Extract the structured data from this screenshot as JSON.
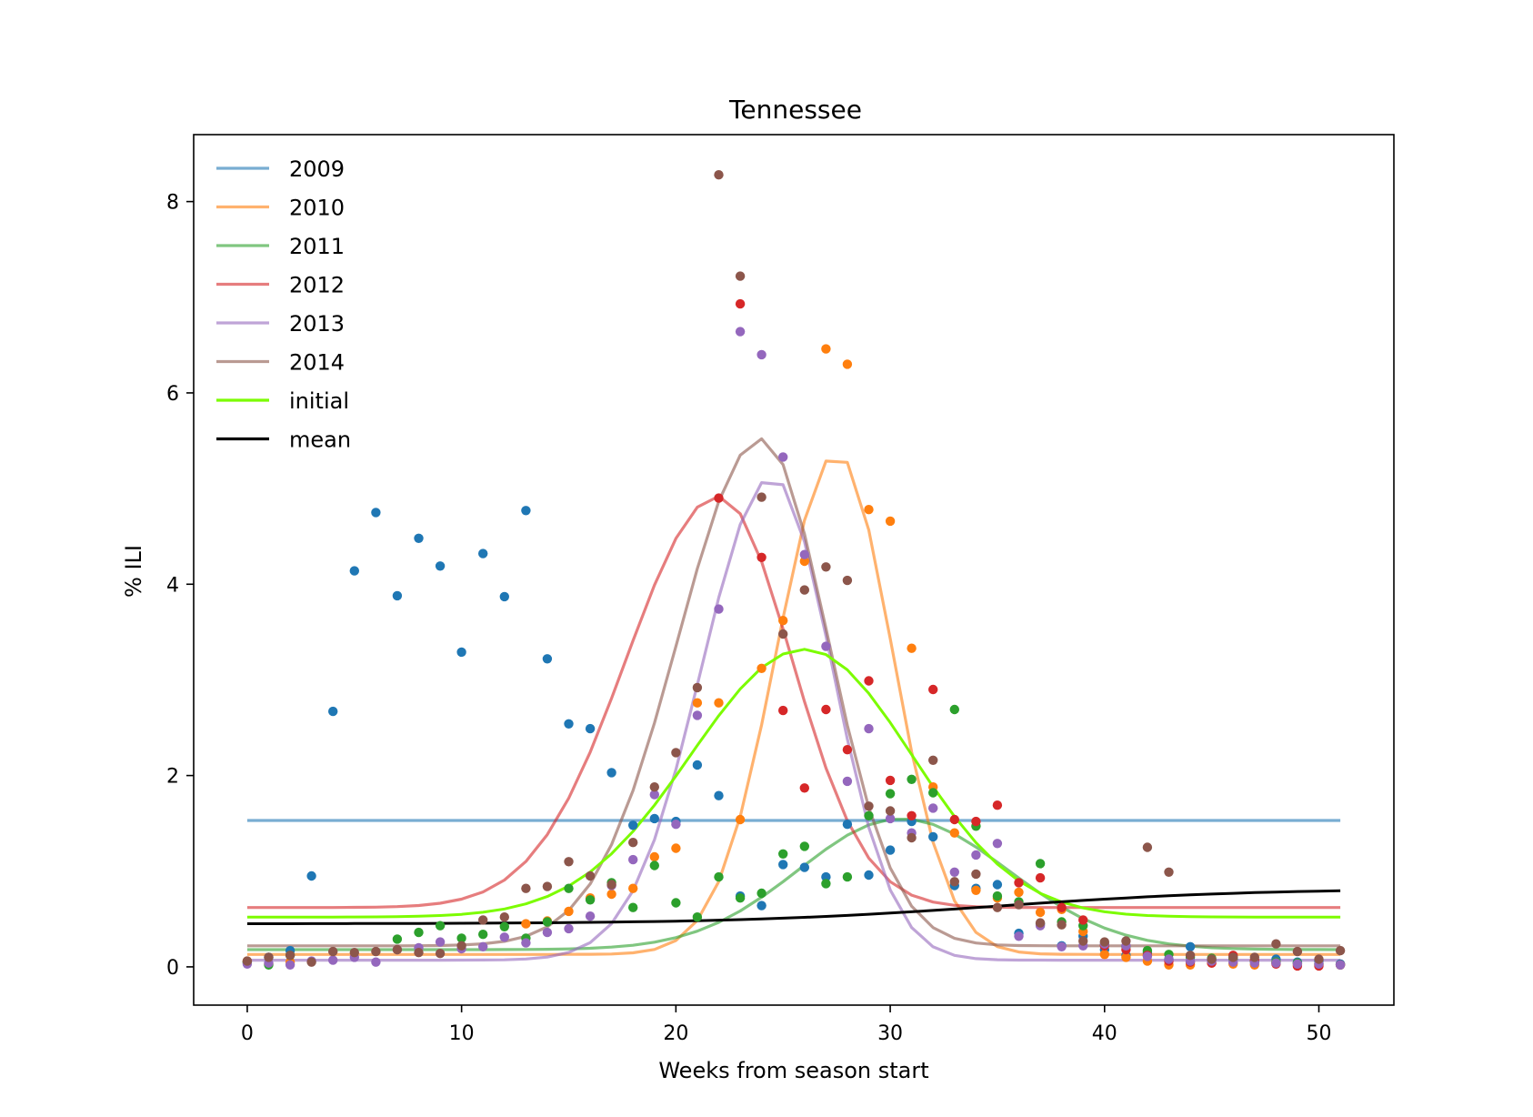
{
  "chart_data": {
    "type": "line",
    "title": "Tennessee",
    "xlabel": "Weeks from season start",
    "ylabel": "% ILI",
    "xlim": [
      -2.5,
      53.5
    ],
    "ylim": [
      -0.4,
      8.7
    ],
    "xticks": [
      0,
      10,
      20,
      30,
      40,
      50
    ],
    "yticks": [
      0,
      2,
      4,
      6,
      8
    ],
    "grid": false,
    "legend_position": "top-left",
    "legend": [
      "2009",
      "2010",
      "2011",
      "2012",
      "2013",
      "2014",
      "initial",
      "mean"
    ],
    "colors": {
      "2009": "#1f77b4",
      "2010": "#ff7f0e",
      "2011": "#2ca02c",
      "2012": "#d62728",
      "2013": "#9467bd",
      "2014": "#8c564b",
      "initial": "#7cfc00",
      "mean": "#000000"
    },
    "curves": [
      {
        "name": "2009",
        "model": "flat",
        "value": 1.53
      },
      {
        "name": "2010",
        "model": "bump",
        "base": 0.13,
        "peak": 5.37,
        "center": 27.5,
        "rise": 2.8,
        "fall": 2.6
      },
      {
        "name": "2011",
        "model": "bump",
        "base": 0.18,
        "peak": 1.55,
        "center": 30.5,
        "rise": 4.8,
        "fall": 5.0
      },
      {
        "name": "2012",
        "model": "bump",
        "base": 0.62,
        "peak": 4.92,
        "center": 22.0,
        "rise": 4.3,
        "fall": 3.4
      },
      {
        "name": "2013",
        "model": "bump",
        "base": 0.07,
        "peak": 5.12,
        "center": 24.5,
        "rise": 3.3,
        "fall": 2.8
      },
      {
        "name": "2014",
        "model": "bump",
        "base": 0.22,
        "peak": 5.52,
        "center": 24.0,
        "rise": 3.9,
        "fall": 3.1
      },
      {
        "name": "initial",
        "model": "bump",
        "base": 0.52,
        "peak": 3.32,
        "center": 26.0,
        "rise": 5.3,
        "fall": 5.0
      },
      {
        "name": "mean",
        "model": "sigmoid",
        "low": 0.45,
        "high": 0.82,
        "mid": 35.0,
        "scale": 6.0
      }
    ],
    "points": {
      "2009": [
        [
          3,
          0.95
        ],
        [
          4,
          2.67
        ],
        [
          5,
          4.14
        ],
        [
          6,
          4.75
        ],
        [
          7,
          3.88
        ],
        [
          8,
          4.48
        ],
        [
          9,
          4.19
        ],
        [
          10,
          3.29
        ],
        [
          11,
          4.32
        ],
        [
          12,
          3.87
        ],
        [
          13,
          4.77
        ],
        [
          14,
          3.22
        ],
        [
          15,
          2.54
        ],
        [
          16,
          2.49
        ],
        [
          17,
          2.03
        ],
        [
          18,
          1.48
        ],
        [
          19,
          1.55
        ],
        [
          20,
          1.52
        ],
        [
          21,
          2.11
        ],
        [
          22,
          1.79
        ],
        [
          23,
          0.74
        ],
        [
          24,
          0.64
        ],
        [
          25,
          1.07
        ],
        [
          26,
          1.04
        ],
        [
          27,
          0.94
        ],
        [
          28,
          1.49
        ],
        [
          29,
          0.96
        ],
        [
          30,
          1.22
        ],
        [
          31,
          1.52
        ],
        [
          32,
          1.36
        ],
        [
          33,
          0.85
        ],
        [
          34,
          0.82
        ],
        [
          35,
          0.86
        ],
        [
          36,
          0.35
        ],
        [
          37,
          0.45
        ],
        [
          38,
          0.22
        ],
        [
          39,
          0.32
        ],
        [
          40,
          0.18
        ],
        [
          41,
          0.12
        ],
        [
          42,
          0.15
        ],
        [
          43,
          0.08
        ],
        [
          44,
          0.21
        ],
        [
          45,
          0.07
        ],
        [
          46,
          0.1
        ],
        [
          47,
          0.06
        ],
        [
          48,
          0.08
        ],
        [
          49,
          0.05
        ],
        [
          50,
          0.06
        ],
        [
          51,
          0.03
        ],
        [
          0,
          0.05
        ],
        [
          1,
          0.1
        ],
        [
          2,
          0.17
        ]
      ],
      "2010": [
        [
          0,
          0.06
        ],
        [
          1,
          0.03
        ],
        [
          2,
          0.05
        ],
        [
          13,
          0.45
        ],
        [
          14,
          0.48
        ],
        [
          15,
          0.58
        ],
        [
          16,
          0.72
        ],
        [
          17,
          0.76
        ],
        [
          18,
          0.82
        ],
        [
          19,
          1.15
        ],
        [
          20,
          1.24
        ],
        [
          21,
          2.76
        ],
        [
          22,
          2.76
        ],
        [
          23,
          1.54
        ],
        [
          24,
          3.12
        ],
        [
          25,
          3.62
        ],
        [
          26,
          4.24
        ],
        [
          27,
          6.46
        ],
        [
          28,
          6.3
        ],
        [
          29,
          4.78
        ],
        [
          30,
          4.66
        ],
        [
          31,
          3.33
        ],
        [
          32,
          1.88
        ],
        [
          33,
          1.4
        ],
        [
          34,
          0.8
        ],
        [
          35,
          0.72
        ],
        [
          36,
          0.78
        ],
        [
          37,
          0.57
        ],
        [
          38,
          0.6
        ],
        [
          39,
          0.37
        ],
        [
          40,
          0.13
        ],
        [
          41,
          0.1
        ],
        [
          42,
          0.06
        ],
        [
          43,
          0.02
        ],
        [
          44,
          0.02
        ],
        [
          45,
          0.04
        ],
        [
          46,
          0.03
        ],
        [
          47,
          0.02
        ],
        [
          48,
          0.05
        ],
        [
          49,
          0.03
        ],
        [
          50,
          0.02
        ],
        [
          51,
          0.02
        ]
      ],
      "2011": [
        [
          0,
          0.05
        ],
        [
          1,
          0.02
        ],
        [
          2,
          0.12
        ],
        [
          7,
          0.29
        ],
        [
          8,
          0.36
        ],
        [
          9,
          0.43
        ],
        [
          10,
          0.3
        ],
        [
          11,
          0.34
        ],
        [
          12,
          0.42
        ],
        [
          13,
          0.3
        ],
        [
          14,
          0.47
        ],
        [
          15,
          0.82
        ],
        [
          16,
          0.7
        ],
        [
          17,
          0.88
        ],
        [
          18,
          0.62
        ],
        [
          19,
          1.06
        ],
        [
          20,
          0.67
        ],
        [
          21,
          0.52
        ],
        [
          22,
          0.94
        ],
        [
          23,
          0.72
        ],
        [
          24,
          0.77
        ],
        [
          25,
          1.18
        ],
        [
          26,
          1.26
        ],
        [
          27,
          0.87
        ],
        [
          28,
          0.94
        ],
        [
          29,
          1.58
        ],
        [
          30,
          1.81
        ],
        [
          31,
          1.96
        ],
        [
          32,
          1.82
        ],
        [
          33,
          2.69
        ],
        [
          34,
          1.47
        ],
        [
          35,
          0.74
        ],
        [
          36,
          0.68
        ],
        [
          37,
          1.08
        ],
        [
          38,
          0.47
        ],
        [
          39,
          0.43
        ],
        [
          40,
          0.23
        ],
        [
          41,
          0.21
        ],
        [
          42,
          0.17
        ],
        [
          43,
          0.13
        ],
        [
          44,
          0.1
        ],
        [
          45,
          0.09
        ],
        [
          46,
          0.08
        ],
        [
          47,
          0.06
        ],
        [
          48,
          0.05
        ],
        [
          49,
          0.04
        ],
        [
          50,
          0.03
        ],
        [
          51,
          0.02
        ]
      ],
      "2012": [
        [
          22,
          4.9
        ],
        [
          23,
          6.93
        ],
        [
          24,
          4.28
        ],
        [
          25,
          2.68
        ],
        [
          26,
          1.87
        ],
        [
          27,
          2.69
        ],
        [
          28,
          2.27
        ],
        [
          29,
          2.99
        ],
        [
          30,
          1.95
        ],
        [
          31,
          1.58
        ],
        [
          32,
          2.9
        ],
        [
          33,
          1.54
        ],
        [
          34,
          1.52
        ],
        [
          35,
          1.69
        ],
        [
          36,
          0.88
        ],
        [
          37,
          0.93
        ],
        [
          38,
          0.62
        ],
        [
          39,
          0.49
        ],
        [
          40,
          0.22
        ],
        [
          41,
          0.18
        ],
        [
          42,
          0.12
        ],
        [
          43,
          0.06
        ],
        [
          44,
          0.05
        ],
        [
          45,
          0.04
        ],
        [
          46,
          0.12
        ],
        [
          47,
          0.07
        ],
        [
          48,
          0.03
        ],
        [
          49,
          0.01
        ],
        [
          50,
          0.01
        ],
        [
          51,
          0.02
        ]
      ],
      "2013": [
        [
          0,
          0.03
        ],
        [
          1,
          0.04
        ],
        [
          2,
          0.02
        ],
        [
          3,
          0.06
        ],
        [
          4,
          0.07
        ],
        [
          5,
          0.1
        ],
        [
          6,
          0.05
        ],
        [
          7,
          0.18
        ],
        [
          8,
          0.2
        ],
        [
          9,
          0.26
        ],
        [
          10,
          0.19
        ],
        [
          11,
          0.21
        ],
        [
          12,
          0.31
        ],
        [
          13,
          0.25
        ],
        [
          14,
          0.36
        ],
        [
          15,
          0.4
        ],
        [
          16,
          0.53
        ],
        [
          17,
          0.85
        ],
        [
          18,
          1.12
        ],
        [
          19,
          1.8
        ],
        [
          20,
          1.49
        ],
        [
          21,
          2.63
        ],
        [
          22,
          3.74
        ],
        [
          23,
          6.64
        ],
        [
          24,
          6.4
        ],
        [
          25,
          5.33
        ],
        [
          26,
          4.31
        ],
        [
          27,
          3.35
        ],
        [
          28,
          1.94
        ],
        [
          29,
          2.49
        ],
        [
          30,
          1.55
        ],
        [
          31,
          1.4
        ],
        [
          32,
          1.66
        ],
        [
          33,
          0.99
        ],
        [
          34,
          1.17
        ],
        [
          35,
          1.29
        ],
        [
          36,
          0.32
        ],
        [
          37,
          0.43
        ],
        [
          38,
          0.21
        ],
        [
          39,
          0.22
        ],
        [
          40,
          0.24
        ],
        [
          41,
          0.22
        ],
        [
          42,
          0.11
        ],
        [
          43,
          0.08
        ],
        [
          44,
          0.06
        ],
        [
          45,
          0.06
        ],
        [
          46,
          0.05
        ],
        [
          47,
          0.04
        ],
        [
          48,
          0.04
        ],
        [
          49,
          0.03
        ],
        [
          50,
          0.03
        ],
        [
          51,
          0.02
        ]
      ],
      "2014": [
        [
          0,
          0.06
        ],
        [
          1,
          0.1
        ],
        [
          2,
          0.12
        ],
        [
          3,
          0.05
        ],
        [
          4,
          0.16
        ],
        [
          5,
          0.15
        ],
        [
          6,
          0.16
        ],
        [
          7,
          0.18
        ],
        [
          8,
          0.15
        ],
        [
          9,
          0.14
        ],
        [
          10,
          0.22
        ],
        [
          11,
          0.49
        ],
        [
          12,
          0.52
        ],
        [
          13,
          0.82
        ],
        [
          14,
          0.84
        ],
        [
          15,
          1.1
        ],
        [
          16,
          0.95
        ],
        [
          17,
          0.86
        ],
        [
          18,
          1.3
        ],
        [
          19,
          1.88
        ],
        [
          20,
          2.24
        ],
        [
          21,
          2.92
        ],
        [
          22,
          8.28
        ],
        [
          23,
          7.22
        ],
        [
          24,
          4.91
        ],
        [
          25,
          3.48
        ],
        [
          26,
          3.94
        ],
        [
          27,
          4.18
        ],
        [
          28,
          4.04
        ],
        [
          29,
          1.68
        ],
        [
          30,
          1.63
        ],
        [
          31,
          1.35
        ],
        [
          32,
          2.16
        ],
        [
          33,
          0.89
        ],
        [
          34,
          0.97
        ],
        [
          35,
          0.62
        ],
        [
          36,
          0.65
        ],
        [
          37,
          0.46
        ],
        [
          38,
          0.44
        ],
        [
          39,
          0.27
        ],
        [
          40,
          0.26
        ],
        [
          41,
          0.27
        ],
        [
          42,
          1.25
        ],
        [
          43,
          0.99
        ],
        [
          44,
          0.12
        ],
        [
          45,
          0.08
        ],
        [
          46,
          0.1
        ],
        [
          47,
          0.1
        ],
        [
          48,
          0.24
        ],
        [
          49,
          0.16
        ],
        [
          50,
          0.08
        ],
        [
          51,
          0.17
        ]
      ]
    }
  }
}
